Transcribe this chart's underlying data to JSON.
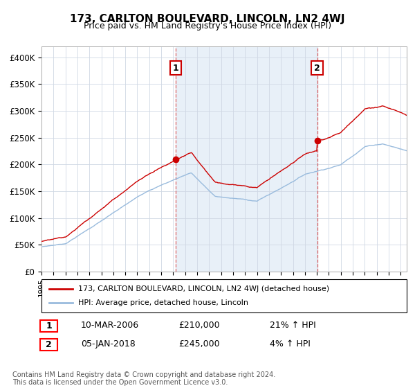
{
  "title": "173, CARLTON BOULEVARD, LINCOLN, LN2 4WJ",
  "subtitle": "Price paid vs. HM Land Registry's House Price Index (HPI)",
  "property_label": "173, CARLTON BOULEVARD, LINCOLN, LN2 4WJ (detached house)",
  "hpi_label": "HPI: Average price, detached house, Lincoln",
  "footnote": "Contains HM Land Registry data © Crown copyright and database right 2024.\nThis data is licensed under the Open Government Licence v3.0.",
  "transaction1_date": "10-MAR-2006",
  "transaction1_price": "£210,000",
  "transaction1_hpi": "21% ↑ HPI",
  "transaction2_date": "05-JAN-2018",
  "transaction2_price": "£245,000",
  "transaction2_hpi": "4% ↑ HPI",
  "ylim": [
    0,
    420000
  ],
  "yticks": [
    0,
    50000,
    100000,
    150000,
    200000,
    250000,
    300000,
    350000,
    400000
  ],
  "ytick_labels": [
    "£0",
    "£50K",
    "£100K",
    "£150K",
    "£200K",
    "£250K",
    "£300K",
    "£350K",
    "£400K"
  ],
  "property_color": "#cc0000",
  "hpi_color": "#99bbdd",
  "vline1_x": 2006.19,
  "vline2_x": 2018.02,
  "xmin": 1995,
  "xmax": 2025.5,
  "bg_shade_color": "#e8f0f8"
}
